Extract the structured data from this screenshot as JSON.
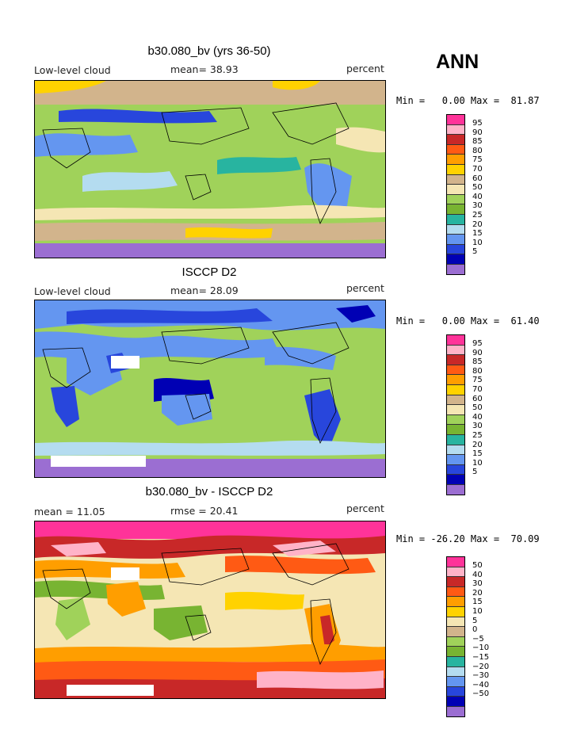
{
  "header": {
    "season": "ANN"
  },
  "panels": [
    {
      "title": "b30.080_bv (yrs 36-50)",
      "left_label": "Low-level cloud",
      "mid_label": "mean=  38.93",
      "right_label": "percent",
      "minmax": "Min =   0.00 Max =  81.87"
    },
    {
      "title": "ISCCP D2",
      "left_label": "Low-level cloud",
      "mid_label": "mean=  28.09",
      "right_label": "percent",
      "minmax": "Min =   0.00 Max =  61.40"
    },
    {
      "title": "b30.080_bv - ISCCP D2",
      "left_label": "mean =  11.05",
      "mid_label": "rmse =  20.41",
      "right_label": "percent",
      "minmax": "Min = -26.20 Max =  70.09"
    }
  ],
  "chart_data": [
    {
      "type": "heatmap",
      "title": "b30.080_bv (yrs 36-50)",
      "variable": "Low-level cloud",
      "units": "percent",
      "mean": 38.93,
      "min": 0.0,
      "max": 81.87,
      "legend_levels": [
        "95",
        "90",
        "85",
        "80",
        "75",
        "70",
        "60",
        "50",
        "40",
        "30",
        "25",
        "20",
        "15",
        "10",
        "5"
      ],
      "legend_colors": [
        "#ff3399",
        "#ffb3c8",
        "#c82828",
        "#ff5a14",
        "#ff9e00",
        "#ffd200",
        "#d2b48c",
        "#f5e6b4",
        "#a0d25a",
        "#78b432",
        "#28b4a0",
        "#b4dcf0",
        "#6496f0",
        "#2846dc",
        "#0000b4",
        "#9b6ed2"
      ]
    },
    {
      "type": "heatmap",
      "title": "ISCCP D2",
      "variable": "Low-level cloud",
      "units": "percent",
      "mean": 28.09,
      "min": 0.0,
      "max": 61.4,
      "legend_levels": [
        "95",
        "90",
        "85",
        "80",
        "75",
        "70",
        "60",
        "50",
        "40",
        "30",
        "25",
        "20",
        "15",
        "10",
        "5"
      ],
      "legend_colors": [
        "#ff3399",
        "#ffb3c8",
        "#c82828",
        "#ff5a14",
        "#ff9e00",
        "#ffd200",
        "#d2b48c",
        "#f5e6b4",
        "#a0d25a",
        "#78b432",
        "#28b4a0",
        "#b4dcf0",
        "#6496f0",
        "#2846dc",
        "#0000b4",
        "#9b6ed2"
      ]
    },
    {
      "type": "heatmap",
      "title": "b30.080_bv - ISCCP D2",
      "units": "percent",
      "mean": 11.05,
      "rmse": 20.41,
      "min": -26.2,
      "max": 70.09,
      "legend_levels": [
        "50",
        "40",
        "30",
        "20",
        "15",
        "10",
        "5",
        "0",
        "−5",
        "−10",
        "−15",
        "−20",
        "−30",
        "−40",
        "−50"
      ],
      "legend_colors": [
        "#ff3399",
        "#ffb3c8",
        "#c82828",
        "#ff5a14",
        "#ff9e00",
        "#ffd200",
        "#f5e6b4",
        "#a0d25a",
        "#78b432",
        "#28b4a0",
        "#b4dcf0",
        "#6496f0",
        "#2846dc",
        "#0000b4",
        "#9b6ed2",
        "#9b6ed2"
      ]
    }
  ]
}
